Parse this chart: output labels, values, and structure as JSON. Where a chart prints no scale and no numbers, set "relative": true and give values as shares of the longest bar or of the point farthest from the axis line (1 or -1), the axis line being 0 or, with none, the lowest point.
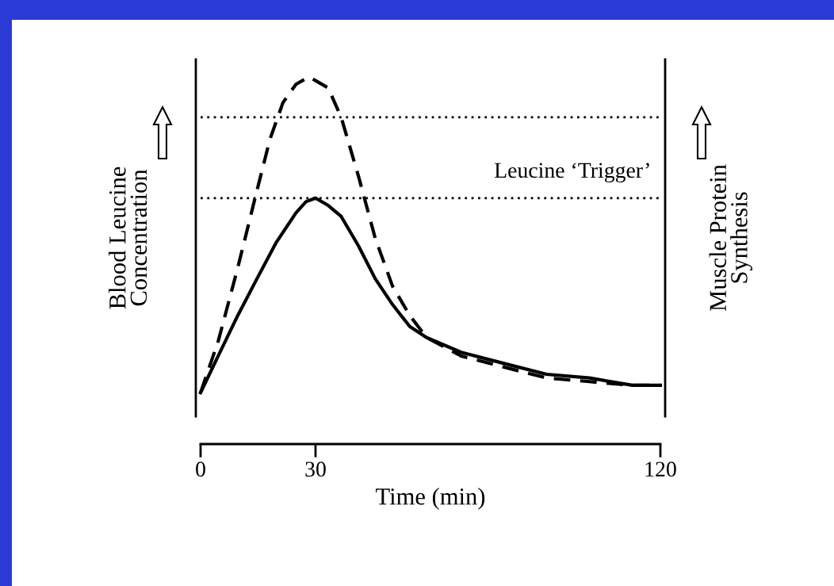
{
  "chart_data": {
    "type": "line",
    "relative": true,
    "xlabel": "Time (min)",
    "ylabel": "Blood Leucine\nConcentration",
    "y2label": "Muscle Protein\nSynthesis",
    "xlim": [
      0,
      120
    ],
    "xticks": [
      0,
      30,
      120
    ],
    "tick_labels": "x",
    "grid": false,
    "legend": false,
    "marker": "none",
    "annotations": [
      "Leucine ‘Trigger’"
    ],
    "ref_lines": [
      {
        "axis": "y",
        "value": 0.89,
        "color": "#000000",
        "line_style": "dotted"
      },
      {
        "axis": "y",
        "value": 0.67,
        "color": "#000000",
        "line_style": "dotted"
      }
    ],
    "series": [
      {
        "color": "#000000",
        "line_style": "solid",
        "x": [
          0,
          4.6,
          9.7,
          14.7,
          19.8,
          24.9,
          27.5,
          30,
          33.3,
          36.7,
          41.2,
          45.6,
          50.1,
          54.6,
          59,
          68,
          79,
          90.3,
          101.5,
          112.7,
          120
        ],
        "values": [
          0.14,
          0.24,
          0.35,
          0.45,
          0.55,
          0.63,
          0.66,
          0.67,
          0.65,
          0.62,
          0.54,
          0.45,
          0.38,
          0.32,
          0.29,
          0.25,
          0.22,
          0.19,
          0.18,
          0.16,
          0.16
        ]
      },
      {
        "color": "#000000",
        "line_style": "dashed",
        "x": [
          0,
          4.6,
          9.7,
          14.7,
          18.1,
          21.5,
          24.9,
          28.3,
          30,
          33.3,
          36.7,
          41.2,
          45.6,
          50.1,
          54.6,
          59,
          68,
          79,
          90.3,
          101.5,
          112.7,
          120
        ],
        "values": [
          0.14,
          0.28,
          0.48,
          0.69,
          0.83,
          0.93,
          0.98,
          1,
          0.99,
          0.97,
          0.89,
          0.73,
          0.56,
          0.43,
          0.35,
          0.29,
          0.24,
          0.21,
          0.18,
          0.17,
          0.16,
          0.16
        ]
      }
    ]
  }
}
